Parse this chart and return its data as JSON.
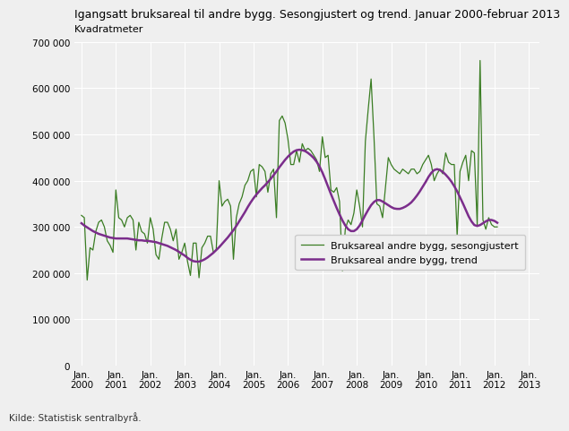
{
  "title": "Igangsatt bruksareal til andre bygg. Sesongjustert og trend. Januar 2000-februar 2013",
  "ylabel": "Kvadratmeter",
  "source": "Kilde: Statistisk sentralbyrå.",
  "ylim": [
    0,
    700000
  ],
  "yticks": [
    0,
    100000,
    200000,
    300000,
    400000,
    500000,
    600000,
    700000
  ],
  "xtick_labels": [
    "Jan.\n2000",
    "Jan.\n2001",
    "Jan.\n2002",
    "Jan.\n2003",
    "Jan.\n2004",
    "Jan.\n2005",
    "Jan.\n2006",
    "Jan.\n2007",
    "Jan.\n2008",
    "Jan.\n2009",
    "Jan.\n2010",
    "Jan.\n2011",
    "Jan.\n2012",
    "Jan.\n2013"
  ],
  "seasonal_color": "#3a7d23",
  "trend_color": "#7b2d8b",
  "legend_seasonal": "Bruksareal andre bygg, sesongjustert",
  "legend_trend": "Bruksareal andre bygg, trend",
  "background_color": "#efefef",
  "seasonal": [
    325000,
    320000,
    185000,
    255000,
    250000,
    290000,
    310000,
    315000,
    300000,
    270000,
    260000,
    245000,
    380000,
    320000,
    315000,
    300000,
    320000,
    325000,
    315000,
    250000,
    310000,
    290000,
    285000,
    265000,
    320000,
    295000,
    240000,
    230000,
    275000,
    310000,
    310000,
    295000,
    270000,
    295000,
    230000,
    245000,
    265000,
    225000,
    195000,
    265000,
    265000,
    190000,
    255000,
    265000,
    280000,
    280000,
    245000,
    250000,
    400000,
    345000,
    355000,
    360000,
    345000,
    230000,
    320000,
    350000,
    365000,
    390000,
    400000,
    420000,
    425000,
    365000,
    435000,
    430000,
    420000,
    375000,
    415000,
    425000,
    320000,
    530000,
    540000,
    525000,
    490000,
    435000,
    435000,
    465000,
    440000,
    480000,
    465000,
    470000,
    465000,
    455000,
    445000,
    420000,
    495000,
    450000,
    455000,
    380000,
    375000,
    385000,
    355000,
    205000,
    295000,
    315000,
    305000,
    330000,
    380000,
    345000,
    300000,
    485000,
    555000,
    620000,
    495000,
    350000,
    345000,
    320000,
    385000,
    450000,
    435000,
    425000,
    420000,
    415000,
    425000,
    420000,
    415000,
    425000,
    425000,
    415000,
    420000,
    435000,
    445000,
    455000,
    435000,
    400000,
    415000,
    425000,
    415000,
    460000,
    440000,
    435000,
    435000,
    280000,
    420000,
    440000,
    455000,
    400000,
    465000,
    460000,
    305000,
    660000,
    315000,
    295000,
    320000,
    305000,
    300000,
    300000
  ],
  "trend": [
    308000,
    303000,
    299000,
    295000,
    291000,
    288000,
    285000,
    283000,
    281000,
    279000,
    277000,
    276000,
    275000,
    275000,
    275000,
    275000,
    275000,
    274000,
    273000,
    272000,
    271000,
    271000,
    270000,
    270000,
    269000,
    268000,
    267000,
    265000,
    263000,
    261000,
    259000,
    256000,
    253000,
    250000,
    246000,
    242000,
    238000,
    233000,
    229000,
    226000,
    225000,
    225000,
    227000,
    230000,
    234000,
    239000,
    244000,
    250000,
    256000,
    263000,
    270000,
    277000,
    285000,
    293000,
    302000,
    312000,
    322000,
    332000,
    343000,
    353000,
    362000,
    370000,
    377000,
    384000,
    390000,
    397000,
    404000,
    412000,
    420000,
    429000,
    437000,
    445000,
    452000,
    458000,
    463000,
    466000,
    467000,
    466000,
    464000,
    460000,
    455000,
    449000,
    441000,
    431000,
    418000,
    403000,
    387000,
    371000,
    356000,
    341000,
    327000,
    314000,
    303000,
    295000,
    291000,
    291000,
    295000,
    303000,
    314000,
    326000,
    337000,
    347000,
    354000,
    358000,
    358000,
    355000,
    351000,
    347000,
    343000,
    340000,
    339000,
    339000,
    341000,
    344000,
    348000,
    353000,
    360000,
    368000,
    377000,
    387000,
    397000,
    408000,
    417000,
    423000,
    425000,
    423000,
    419000,
    413000,
    406000,
    398000,
    388000,
    377000,
    364000,
    351000,
    337000,
    323000,
    312000,
    304000,
    302000,
    304000,
    308000,
    312000,
    315000,
    315000,
    313000,
    309000
  ]
}
